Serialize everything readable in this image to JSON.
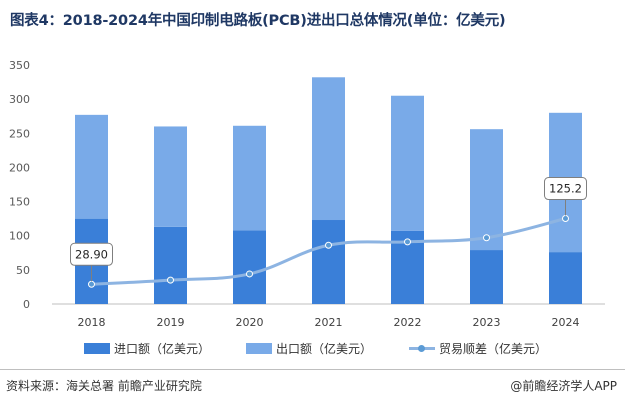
{
  "title": "图表4：2018-2024年中国印制电路板(PCB)进出口总体情况(单位：亿美元)",
  "colors": {
    "import": "#3a7fd8",
    "export": "#79aae8",
    "balance_line": "#8db4e2",
    "balance_point": "#5b9bd5",
    "title": "#1f3864"
  },
  "chart_data": {
    "type": "bar",
    "stacked": true,
    "categories": [
      "2018",
      "2019",
      "2020",
      "2021",
      "2022",
      "2023",
      "2024"
    ],
    "series": [
      {
        "name": "进口额（亿美元）",
        "type": "bar",
        "values": [
          125,
          113,
          108,
          123,
          107,
          79,
          76
        ]
      },
      {
        "name": "出口额（亿美元）",
        "type": "bar",
        "values": [
          152,
          147,
          153,
          209,
          198,
          177,
          204
        ]
      },
      {
        "name": "贸易顺差（亿美元）",
        "type": "line",
        "values": [
          28.9,
          35,
          44,
          86,
          91,
          97,
          125.2
        ]
      }
    ],
    "data_labels": [
      {
        "series": 2,
        "index": 0,
        "text": "28.90"
      },
      {
        "series": 2,
        "index": 6,
        "text": "125.2"
      }
    ],
    "ylim": [
      0,
      350
    ],
    "yticks": [
      0,
      50,
      100,
      150,
      200,
      250,
      300,
      350
    ],
    "grid": false,
    "legend_position": "bottom"
  },
  "legend": {
    "import": "进口额（亿美元）",
    "export": "出口额（亿美元）",
    "balance": "贸易顺差（亿美元）"
  },
  "footer": {
    "source": "资料来源：海关总署 前瞻产业研究院",
    "brand": "@前瞻经济学人APP"
  }
}
